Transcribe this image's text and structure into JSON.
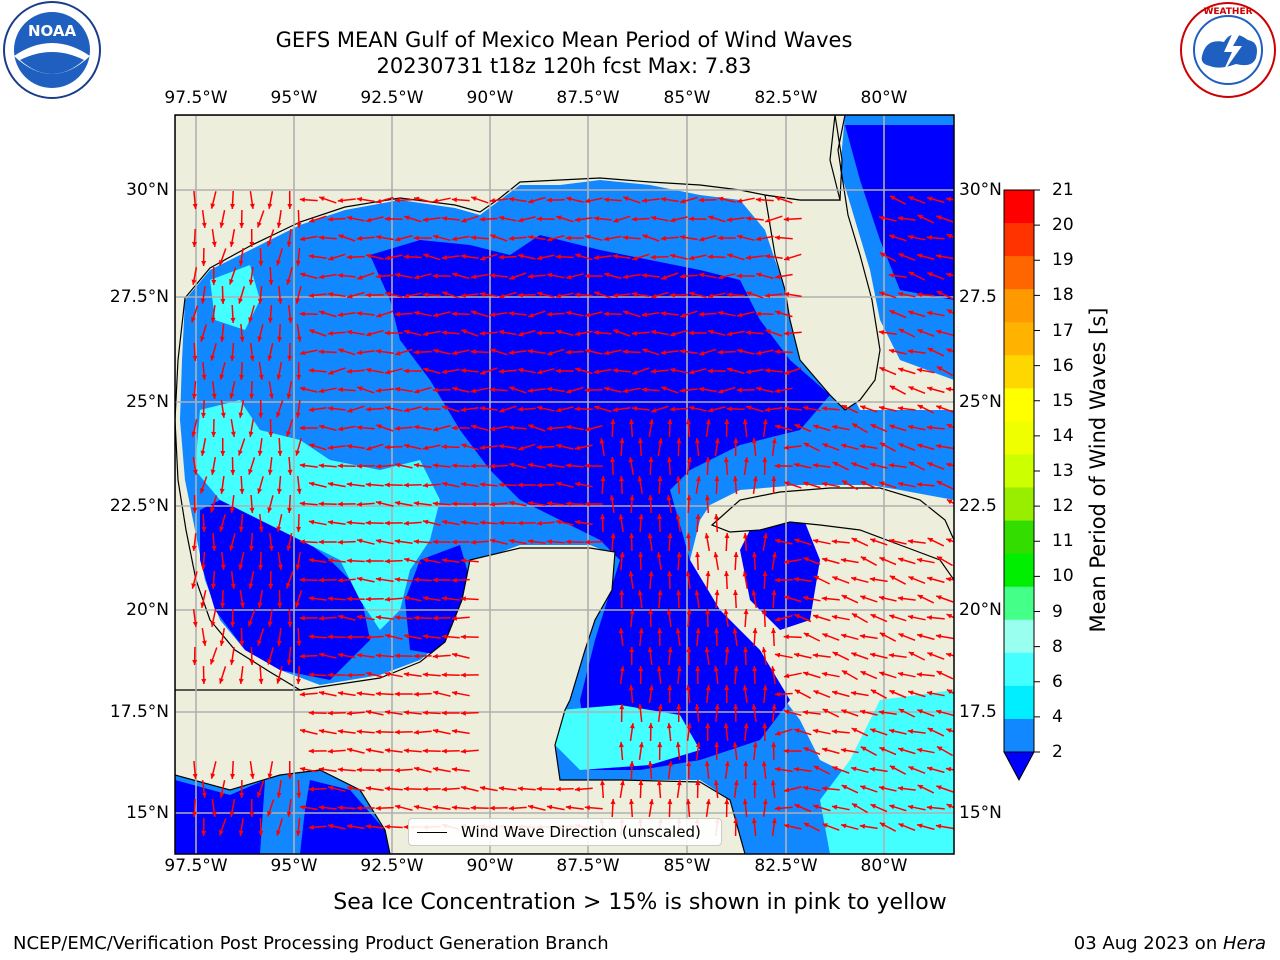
{
  "title": {
    "line1": "GEFS MEAN Gulf of Mexico Mean Period of Wind Waves",
    "line2": "20230731 t18z 120h fcst   Max: 7.83"
  },
  "logos": {
    "left": "NOAA",
    "right": "NATIONAL WEATHER SERVICE"
  },
  "map": {
    "lon_ticks": [
      "97.5°W",
      "95°W",
      "92.5°W",
      "90°W",
      "87.5°W",
      "85°W",
      "82.5°W",
      "80°W"
    ],
    "lat_ticks_left": [
      "30°N",
      "27.5°N",
      "25°N",
      "22.5°N",
      "20°N",
      "17.5°N",
      "15°N"
    ],
    "lat_ticks_right": [
      "30°N",
      "27.5",
      "25°N",
      "22.5",
      "20°N",
      "17.5",
      "15°N"
    ],
    "land_color": "#eeeedc",
    "grid_color": "#b0b0b0",
    "arrow_color": "#ff0000",
    "legend_label": "Wind Wave Direction (unscaled)"
  },
  "colorbar": {
    "label": "Mean Period of Wind Waves [s]",
    "ticks": [
      "21",
      "20",
      "19",
      "18",
      "17",
      "16",
      "15",
      "14",
      "13",
      "12",
      "11",
      "10",
      "9",
      "8",
      "6",
      "4",
      "2"
    ],
    "colors": [
      "#ff0000",
      "#ff3300",
      "#ff6600",
      "#ff9900",
      "#ffb300",
      "#ffd700",
      "#ffff00",
      "#f0ff00",
      "#ccff00",
      "#99ee00",
      "#33dd00",
      "#00ee00",
      "#44ff88",
      "#99ffee",
      "#44ffff",
      "#00eeff",
      "#1188ff"
    ],
    "under_color": "#0000ff"
  },
  "note": "Sea Ice Concentration > 15% is shown in pink to yellow",
  "footer": {
    "left": "NCEP/EMC/Verification Post Processing Product Generation Branch",
    "right_date": "03 Aug 2023 on ",
    "right_machine": "Hera"
  }
}
